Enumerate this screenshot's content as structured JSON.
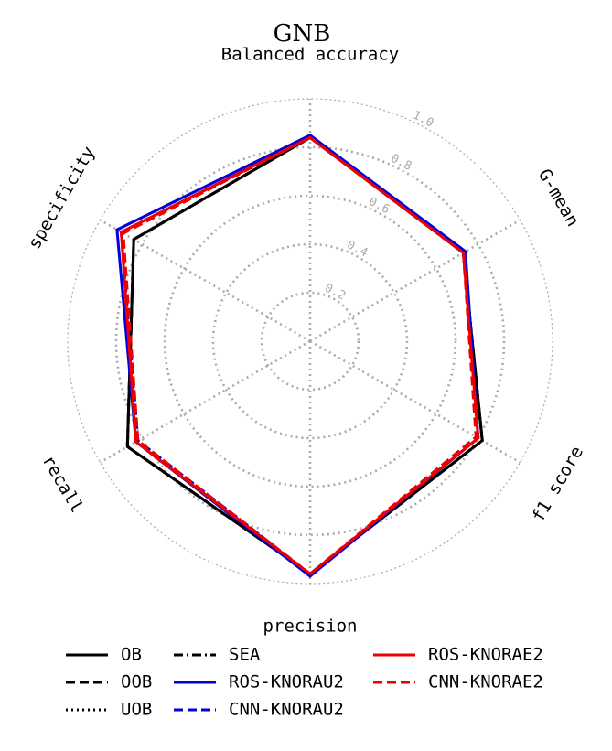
{
  "chart_data": {
    "type": "radar",
    "title": "GNB",
    "axes": [
      "Balanced accuracy",
      "G-mean",
      "f1 score",
      "precision",
      "recall",
      "specificity"
    ],
    "rlim": [
      0,
      1.0
    ],
    "rticks": [
      0.2,
      0.4,
      0.6,
      0.8,
      1.0
    ],
    "rtick_labels": [
      "0.2",
      "0.4",
      "0.6",
      "0.8",
      "1.0"
    ],
    "grid": true,
    "legend_position": "bottom",
    "series": [
      {
        "name": "OB",
        "color": "#000000",
        "style": "solid",
        "values": [
          0.84,
          0.73,
          0.82,
          0.96,
          0.87,
          0.84
        ]
      },
      {
        "name": "OOB",
        "color": "#000000",
        "style": "dashed",
        "values": [
          0.84,
          0.73,
          0.82,
          0.96,
          0.87,
          0.84
        ]
      },
      {
        "name": "UOB",
        "color": "#000000",
        "style": "dotted",
        "values": [
          0.84,
          0.73,
          0.82,
          0.96,
          0.87,
          0.84
        ]
      },
      {
        "name": "SEA",
        "color": "#000000",
        "style": "dashdot",
        "values": [
          0.84,
          0.73,
          0.82,
          0.96,
          0.87,
          0.84
        ]
      },
      {
        "name": "ROS-KNORAU2",
        "color": "#0000dd",
        "style": "solid",
        "values": [
          0.85,
          0.74,
          0.8,
          0.97,
          0.83,
          0.92
        ]
      },
      {
        "name": "CNN-KNORAU2",
        "color": "#0000dd",
        "style": "dashed",
        "values": [
          0.84,
          0.73,
          0.8,
          0.96,
          0.82,
          0.9
        ]
      },
      {
        "name": "ROS-KNORAE2",
        "color": "#ee0000",
        "style": "solid",
        "values": [
          0.84,
          0.73,
          0.8,
          0.96,
          0.83,
          0.9
        ]
      },
      {
        "name": "CNN-KNORAE2",
        "color": "#ee0000",
        "style": "dashed",
        "values": [
          0.84,
          0.73,
          0.79,
          0.96,
          0.82,
          0.89
        ]
      }
    ]
  }
}
